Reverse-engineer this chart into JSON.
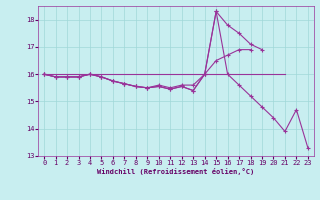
{
  "xlabel": "Windchill (Refroidissement éolien,°C)",
  "bg_color": "#c8eef0",
  "line_color": "#993399",
  "grid_color": "#a0d8d8",
  "x_hours": [
    0,
    1,
    2,
    3,
    4,
    5,
    6,
    7,
    8,
    9,
    10,
    11,
    12,
    13,
    14,
    15,
    16,
    17,
    18,
    19,
    20,
    21,
    22,
    23
  ],
  "line1_y": [
    16.0,
    15.9,
    15.9,
    15.9,
    16.0,
    15.9,
    15.75,
    15.65,
    15.55,
    15.5,
    15.55,
    15.45,
    15.55,
    15.4,
    16.0,
    18.3,
    16.0,
    15.6,
    15.2,
    14.8,
    14.4,
    13.9,
    14.7,
    13.3
  ],
  "line2_y": [
    16.0,
    15.9,
    15.9,
    15.9,
    16.0,
    15.9,
    15.75,
    15.65,
    15.55,
    15.5,
    15.55,
    15.45,
    15.55,
    15.4,
    16.0,
    18.3,
    17.8,
    17.5,
    17.1,
    16.9,
    null,
    null,
    null,
    null
  ],
  "line3_y": [
    16.0,
    16.0,
    16.0,
    16.0,
    16.0,
    16.0,
    16.0,
    16.0,
    16.0,
    16.0,
    16.0,
    16.0,
    16.0,
    16.0,
    16.0,
    16.0,
    16.0,
    16.0,
    16.0,
    16.0,
    16.0,
    16.0,
    null,
    null
  ],
  "line4_y": [
    16.0,
    15.9,
    15.9,
    15.9,
    16.0,
    15.9,
    15.75,
    15.65,
    15.55,
    15.5,
    15.6,
    15.5,
    15.6,
    15.6,
    16.0,
    16.5,
    16.7,
    16.9,
    16.9,
    null,
    null,
    null,
    null,
    null
  ],
  "ylim": [
    13.0,
    18.5
  ],
  "yticks": [
    13,
    14,
    15,
    16,
    17,
    18
  ],
  "xticks": [
    0,
    1,
    2,
    3,
    4,
    5,
    6,
    7,
    8,
    9,
    10,
    11,
    12,
    13,
    14,
    15,
    16,
    17,
    18,
    19,
    20,
    21,
    22,
    23
  ]
}
